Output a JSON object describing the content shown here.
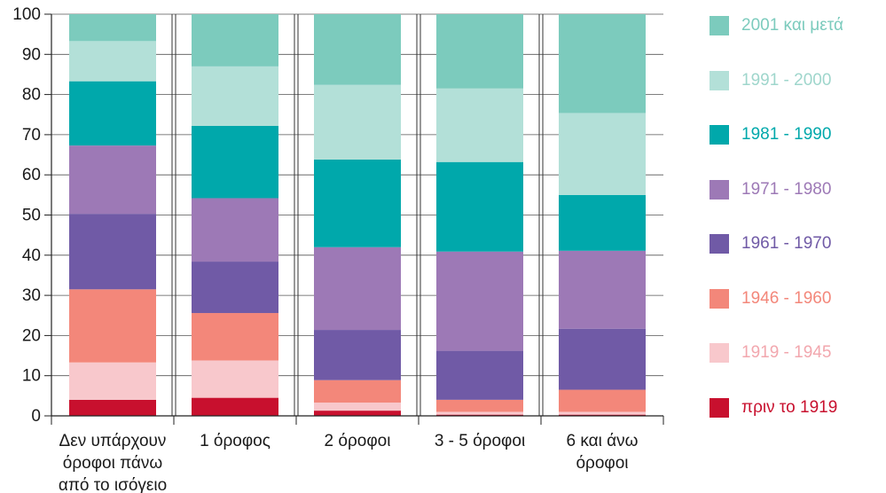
{
  "chart_data": {
    "type": "bar",
    "stacked": true,
    "title": "",
    "xlabel": "",
    "ylabel": "",
    "ylim": [
      0,
      100
    ],
    "yticks": [
      0,
      10,
      20,
      30,
      40,
      50,
      60,
      70,
      80,
      90,
      100
    ],
    "grid": "horizontal",
    "legend_placement": "right",
    "categories": [
      [
        "Δεν υπάρχουν",
        "όροφοι πάνω",
        "από το ισόγειο"
      ],
      [
        "1 όροφος"
      ],
      [
        "2 όροφοι"
      ],
      [
        "3 - 5 όροφοι"
      ],
      [
        "6 και άνω",
        "όροφοι"
      ]
    ],
    "series": [
      {
        "name": "πριν το 1919",
        "color": "#c8102e",
        "values": [
          4,
          4.5,
          1.3,
          0.3,
          0.3
        ]
      },
      {
        "name": "1919 - 1945",
        "color": "#f8c8cc",
        "values": [
          9.3,
          9.3,
          2,
          0.7,
          0.7
        ]
      },
      {
        "name": "1946 - 1960",
        "color": "#f3877a",
        "values": [
          18.2,
          11.8,
          5.6,
          3,
          5.5
        ]
      },
      {
        "name": "1961 - 1970",
        "color": "#705aa6",
        "values": [
          18.8,
          12.8,
          12.5,
          12.2,
          15.2
        ]
      },
      {
        "name": "1971 - 1980",
        "color": "#9d79b6",
        "values": [
          17,
          15.8,
          20.6,
          24.7,
          19.4
        ]
      },
      {
        "name": "1981 - 1990",
        "color": "#00a8ab",
        "values": [
          16,
          18,
          21.8,
          22.3,
          13.9
        ]
      },
      {
        "name": "1991 - 2000",
        "color": "#b3e0d8",
        "values": [
          10,
          14.8,
          18.6,
          18.3,
          20.4
        ]
      },
      {
        "name": "2001 και μετά",
        "color": "#7ccbbd",
        "values": [
          6.7,
          13,
          17.6,
          18.5,
          24.6
        ]
      }
    ]
  }
}
